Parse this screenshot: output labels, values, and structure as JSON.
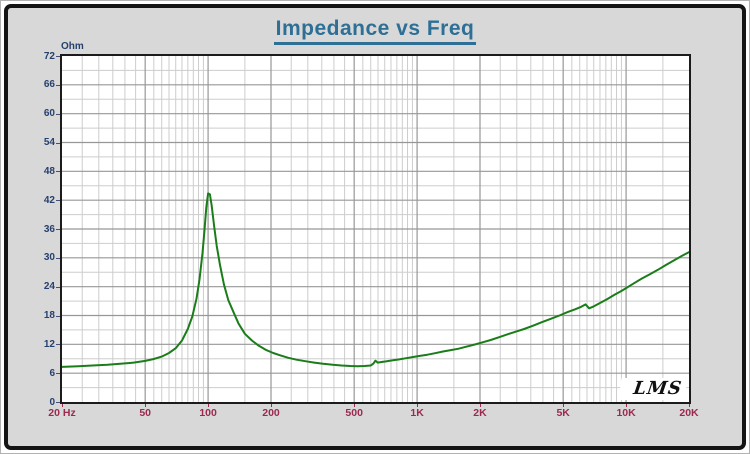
{
  "window": {
    "title": "Impedance vs Freq"
  },
  "header": {
    "title": "Impedance vs Freq"
  },
  "colors": {
    "panel_bg": "#d8d8d8",
    "frame_border": "#141414",
    "title": "#2e6f96",
    "y_labels": "#26406e",
    "x_labels": "#9b2950",
    "grid_major": "#979797",
    "grid_minor": "#cdcdcd",
    "plot_border": "#1b1b1b",
    "curve": "#1a7d1a",
    "logo": "#111111"
  },
  "chart_data": {
    "type": "line",
    "title": "Impedance vs Freq",
    "ylabel": "Ohm",
    "xlabel": "Hz",
    "x_scale": "log",
    "x_range_hz": [
      20,
      20000
    ],
    "ylim": [
      0,
      72
    ],
    "y_major_step": 6,
    "y_minor_step": 3,
    "y_tick_labels": [
      "0",
      "6",
      "12",
      "18",
      "24",
      "30",
      "36",
      "42",
      "48",
      "54",
      "60",
      "66",
      "72"
    ],
    "x_ticks": [
      {
        "hz": 20,
        "label": "20 Hz"
      },
      {
        "hz": 50,
        "label": "50"
      },
      {
        "hz": 100,
        "label": "100"
      },
      {
        "hz": 200,
        "label": "200"
      },
      {
        "hz": 500,
        "label": "500"
      },
      {
        "hz": 1000,
        "label": "1K"
      },
      {
        "hz": 2000,
        "label": "2K"
      },
      {
        "hz": 5000,
        "label": "5K"
      },
      {
        "hz": 10000,
        "label": "10K"
      },
      {
        "hz": 20000,
        "label": "20K"
      }
    ],
    "grid": {
      "shown": true,
      "minor_x_multipliers": [
        1.5,
        2,
        2.5,
        3,
        3.5,
        4,
        4.5,
        5,
        5.5,
        6,
        6.5,
        7,
        7.5,
        8,
        8.5,
        9,
        9.5
      ]
    },
    "series": [
      {
        "name": "impedance",
        "color": "#1a7d1a",
        "points_hz_ohm": [
          [
            20,
            7.3
          ],
          [
            24,
            7.45
          ],
          [
            28,
            7.6
          ],
          [
            33,
            7.75
          ],
          [
            38,
            7.95
          ],
          [
            44,
            8.2
          ],
          [
            50,
            8.55
          ],
          [
            55,
            8.95
          ],
          [
            60,
            9.45
          ],
          [
            65,
            10.2
          ],
          [
            70,
            11.2
          ],
          [
            75,
            12.8
          ],
          [
            80,
            15.2
          ],
          [
            84,
            17.8
          ],
          [
            88,
            21.5
          ],
          [
            91,
            25.5
          ],
          [
            94,
            31
          ],
          [
            96,
            35.5
          ],
          [
            98,
            40.5
          ],
          [
            100,
            43.4
          ],
          [
            102,
            43.2
          ],
          [
            104,
            41
          ],
          [
            107,
            36.5
          ],
          [
            110,
            32.5
          ],
          [
            114,
            28.5
          ],
          [
            119,
            24.5
          ],
          [
            125,
            21.2
          ],
          [
            132,
            18.8
          ],
          [
            140,
            16.3
          ],
          [
            150,
            14.2
          ],
          [
            162,
            12.8
          ],
          [
            175,
            11.7
          ],
          [
            190,
            10.8
          ],
          [
            205,
            10.2
          ],
          [
            222,
            9.7
          ],
          [
            242,
            9.2
          ],
          [
            265,
            8.8
          ],
          [
            292,
            8.5
          ],
          [
            322,
            8.2
          ],
          [
            355,
            7.95
          ],
          [
            395,
            7.75
          ],
          [
            435,
            7.6
          ],
          [
            480,
            7.5
          ],
          [
            520,
            7.45
          ],
          [
            560,
            7.5
          ],
          [
            600,
            7.6
          ],
          [
            618,
            8.0
          ],
          [
            632,
            8.6
          ],
          [
            648,
            8.2
          ],
          [
            670,
            8.3
          ],
          [
            710,
            8.45
          ],
          [
            760,
            8.65
          ],
          [
            815,
            8.85
          ],
          [
            880,
            9.1
          ],
          [
            950,
            9.35
          ],
          [
            1030,
            9.6
          ],
          [
            1120,
            9.85
          ],
          [
            1220,
            10.15
          ],
          [
            1330,
            10.5
          ],
          [
            1450,
            10.8
          ],
          [
            1580,
            11.1
          ],
          [
            1720,
            11.5
          ],
          [
            1880,
            11.95
          ],
          [
            2050,
            12.4
          ],
          [
            2250,
            12.9
          ],
          [
            2480,
            13.5
          ],
          [
            2720,
            14.1
          ],
          [
            2950,
            14.6
          ],
          [
            3250,
            15.2
          ],
          [
            3600,
            15.9
          ],
          [
            3950,
            16.6
          ],
          [
            4350,
            17.3
          ],
          [
            4800,
            18.0
          ],
          [
            5250,
            18.7
          ],
          [
            5700,
            19.3
          ],
          [
            6100,
            19.8
          ],
          [
            6400,
            20.3
          ],
          [
            6650,
            19.5
          ],
          [
            7000,
            19.9
          ],
          [
            7500,
            20.6
          ],
          [
            8100,
            21.4
          ],
          [
            8800,
            22.3
          ],
          [
            9400,
            23.0
          ],
          [
            10000,
            23.7
          ],
          [
            10900,
            24.7
          ],
          [
            11900,
            25.7
          ],
          [
            13000,
            26.6
          ],
          [
            14200,
            27.5
          ],
          [
            15500,
            28.5
          ],
          [
            17000,
            29.5
          ],
          [
            18500,
            30.4
          ],
          [
            20000,
            31.2
          ]
        ]
      }
    ],
    "watermark": "LMS"
  }
}
